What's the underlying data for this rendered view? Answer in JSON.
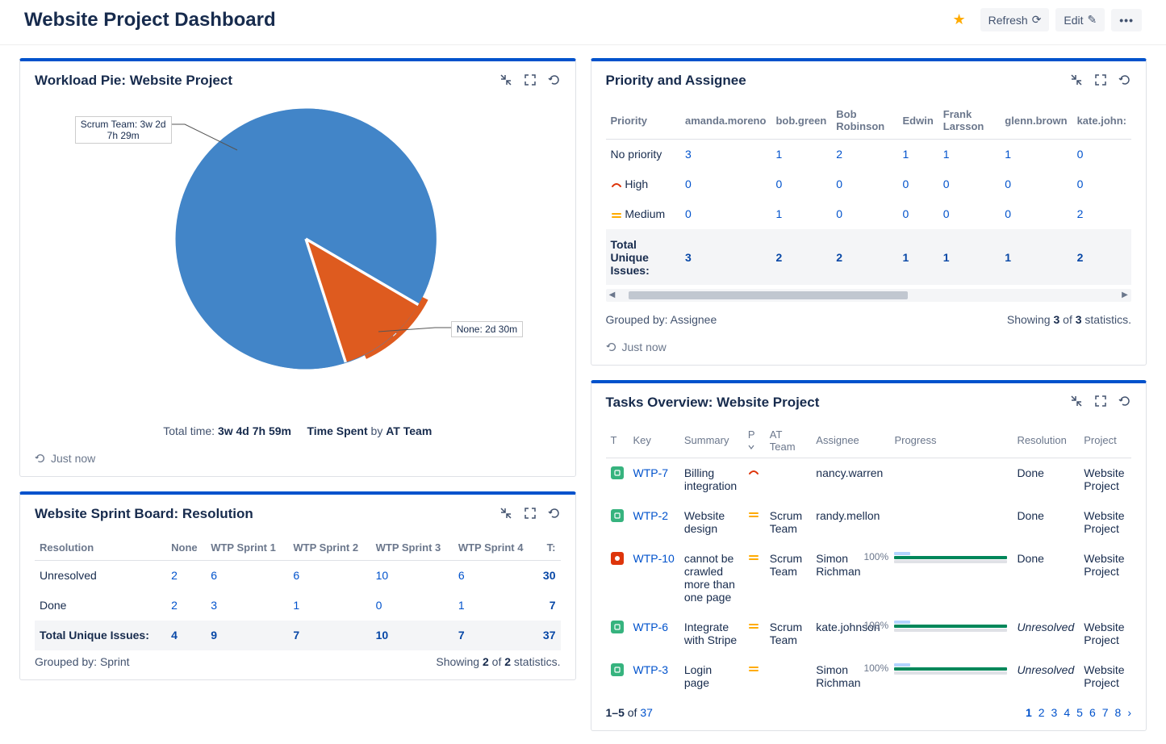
{
  "header": {
    "title": "Website Project Dashboard",
    "refresh_label": "Refresh",
    "edit_label": "Edit"
  },
  "workload": {
    "title": "Workload Pie: Website Project",
    "chart": {
      "type": "pie",
      "slices": [
        {
          "label": "Scrum Team: 3w 2d\n7h 29m",
          "value": 87,
          "color": "#4285c8"
        },
        {
          "label": "None: 2d 30m",
          "value": 13,
          "color": "#de5b1f"
        }
      ],
      "background": "#ffffff",
      "label_border": "#cccccc",
      "label_fontsize": 12
    },
    "footer_prefix": "Total time: ",
    "total_time": "3w 4d 7h 59m",
    "time_spent_label": "Time Spent",
    "by_label": " by ",
    "team": "AT Team",
    "just_now": "Just now"
  },
  "sprint": {
    "title": "Website Sprint Board: Resolution",
    "columns": [
      "Resolution",
      "None",
      "WTP Sprint 1",
      "WTP Sprint 2",
      "WTP Sprint 3",
      "WTP Sprint 4",
      "T:"
    ],
    "rows": [
      {
        "label": "Unresolved",
        "cells": [
          "2",
          "6",
          "6",
          "10",
          "6",
          "30"
        ]
      },
      {
        "label": "Done",
        "cells": [
          "2",
          "3",
          "1",
          "0",
          "1",
          "7"
        ]
      }
    ],
    "total_label": "Total Unique Issues:",
    "totals": [
      "4",
      "9",
      "7",
      "10",
      "7",
      "37"
    ],
    "grouped_by": "Grouped by: Sprint",
    "showing_a": "Showing ",
    "showing_b": "2",
    "showing_c": " of ",
    "showing_d": "2",
    "showing_e": " statistics."
  },
  "priority": {
    "title": "Priority and Assignee",
    "columns": [
      "Priority",
      "amanda.moreno",
      "bob.green",
      "Bob Robinson",
      "Edwin",
      "Frank Larsson",
      "glenn.brown",
      "kate.john:"
    ],
    "rows": [
      {
        "icon": "",
        "label": "No priority",
        "cells": [
          "3",
          "1",
          "2",
          "1",
          "1",
          "1",
          "0"
        ]
      },
      {
        "icon": "high",
        "label": "High",
        "cells": [
          "0",
          "0",
          "0",
          "0",
          "0",
          "0",
          "0"
        ]
      },
      {
        "icon": "med",
        "label": "Medium",
        "cells": [
          "0",
          "1",
          "0",
          "0",
          "0",
          "0",
          "2"
        ]
      }
    ],
    "total_label": "Total Unique Issues:",
    "totals": [
      "3",
      "2",
      "2",
      "1",
      "1",
      "1",
      "2"
    ],
    "grouped_by": "Grouped by: Assignee",
    "showing_a": "Showing ",
    "showing_b": "3",
    "showing_c": " of ",
    "showing_d": "3",
    "showing_e": " statistics.",
    "just_now": "Just now"
  },
  "tasks": {
    "title": "Tasks Overview: Website Project",
    "columns": [
      "T",
      "Key",
      "Summary",
      "P",
      "AT Team",
      "Assignee",
      "Progress",
      "Resolution",
      "Project"
    ],
    "rows": [
      {
        "type": "story",
        "key": "WTP-7",
        "summary": "Billing integration",
        "prio": "high",
        "team": "",
        "assignee": "nancy.warren",
        "progress": null,
        "resolution": "Done",
        "res_italic": false,
        "project": "Website Project"
      },
      {
        "type": "story",
        "key": "WTP-2",
        "summary": "Website design",
        "prio": "med",
        "team": "Scrum Team",
        "assignee": "randy.mellon",
        "progress": null,
        "resolution": "Done",
        "res_italic": false,
        "project": "Website Project"
      },
      {
        "type": "bug",
        "key": "WTP-10",
        "summary": "cannot be crawled more than one page",
        "prio": "med",
        "team": "Scrum Team",
        "assignee": "Simon Richman",
        "progress": 100,
        "resolution": "Done",
        "res_italic": false,
        "project": "Website Project"
      },
      {
        "type": "story",
        "key": "WTP-6",
        "summary": "Integrate with Stripe",
        "prio": "med",
        "team": "Scrum Team",
        "assignee": "kate.johnson",
        "progress": 100,
        "resolution": "Unresolved",
        "res_italic": true,
        "project": "Website Project"
      },
      {
        "type": "story",
        "key": "WTP-3",
        "summary": "Login page",
        "prio": "med",
        "team": "",
        "assignee": "Simon Richman",
        "progress": 100,
        "resolution": "Unresolved",
        "res_italic": true,
        "project": "Website Project"
      }
    ],
    "pagination_range": "1–5",
    "pagination_of": " of ",
    "pagination_total": "37",
    "pages": [
      "1",
      "2",
      "3",
      "4",
      "5",
      "6",
      "7",
      "8"
    ]
  },
  "icons": {
    "collapse": "↙",
    "expand": "⛶",
    "refresh": "↻"
  },
  "colors": {
    "link": "#0052cc",
    "accent_border": "#0052cc",
    "high_priority": "#de350b",
    "med_priority": "#ffab00",
    "story": "#36b37e",
    "bug": "#de350b",
    "progress_blue": "#b3d4ff",
    "progress_green": "#00875a",
    "grid_border": "#dfe1e6",
    "total_row_bg": "#f4f5f7"
  }
}
